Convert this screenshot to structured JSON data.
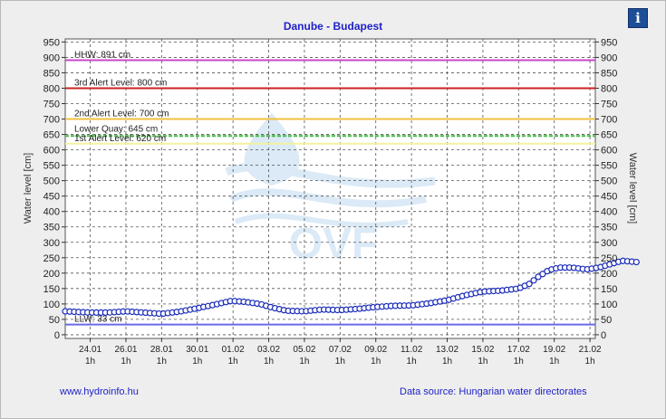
{
  "chart_data": {
    "type": "line",
    "title": "Danube - Budapest",
    "ylabel": "Water level [cm]",
    "ylabel_right": "Water level [cm]",
    "ylim": [
      0,
      950
    ],
    "yticks": [
      "0",
      "50",
      "100",
      "150",
      "200",
      "250",
      "300",
      "350",
      "400",
      "450",
      "500",
      "550",
      "600",
      "650",
      "700",
      "750",
      "800",
      "850",
      "900",
      "950"
    ],
    "xticks": [
      {
        "date": "24.01",
        "hour": "1h"
      },
      {
        "date": "26.01",
        "hour": "1h"
      },
      {
        "date": "28.01",
        "hour": "1h"
      },
      {
        "date": "30.01",
        "hour": "1h"
      },
      {
        "date": "01.02",
        "hour": "1h"
      },
      {
        "date": "03.02",
        "hour": "1h"
      },
      {
        "date": "05.02",
        "hour": "1h"
      },
      {
        "date": "07.02",
        "hour": "1h"
      },
      {
        "date": "09.02",
        "hour": "1h"
      },
      {
        "date": "11.02",
        "hour": "1h"
      },
      {
        "date": "13.02",
        "hour": "1h"
      },
      {
        "date": "15.02",
        "hour": "1h"
      },
      {
        "date": "17.02",
        "hour": "1h"
      },
      {
        "date": "19.02",
        "hour": "1h"
      },
      {
        "date": "21.02",
        "hour": "1h"
      }
    ],
    "x_day_range": [
      -1.4,
      28.3
    ],
    "reference_lines": [
      {
        "label": "HHW: 891 cm",
        "value": 891,
        "color": "#cc44cc"
      },
      {
        "label": "3rd Alert Level: 800 cm",
        "value": 800,
        "color": "#cc2222"
      },
      {
        "label": "2nd Alert Level: 700 cm",
        "value": 700,
        "color": "#f0c040"
      },
      {
        "label": "Lower Quay: 645 cm",
        "value": 645,
        "color": "#44bb44",
        "dashed": true
      },
      {
        "label": "1st Alert Level: 620 cm",
        "value": 620,
        "color": "#f2f2a0"
      },
      {
        "label": "LLW: 33 cm",
        "value": 33,
        "color": "#6a6ae8"
      }
    ],
    "series": [
      {
        "color": "#1a2bb8",
        "points": [
          [
            -1.4,
            76
          ],
          [
            0.0,
            72
          ],
          [
            1.0,
            72
          ],
          [
            2.0,
            76
          ],
          [
            3.0,
            72
          ],
          [
            4.0,
            68
          ],
          [
            5.0,
            75
          ],
          [
            6.0,
            86
          ],
          [
            7.0,
            98
          ],
          [
            7.9,
            110
          ],
          [
            8.6,
            107
          ],
          [
            9.5,
            100
          ],
          [
            10.2,
            88
          ],
          [
            11.0,
            78
          ],
          [
            12.0,
            76
          ],
          [
            13.0,
            82
          ],
          [
            14.0,
            80
          ],
          [
            15.0,
            84
          ],
          [
            16.0,
            90
          ],
          [
            17.0,
            94
          ],
          [
            18.0,
            95
          ],
          [
            19.0,
            102
          ],
          [
            20.0,
            112
          ],
          [
            21.0,
            128
          ],
          [
            22.0,
            140
          ],
          [
            23.0,
            143
          ],
          [
            24.0,
            150
          ],
          [
            24.6,
            165
          ],
          [
            25.1,
            188
          ],
          [
            25.7,
            210
          ],
          [
            26.3,
            218
          ],
          [
            27.0,
            218
          ],
          [
            27.8,
            212
          ],
          [
            28.5,
            218
          ],
          [
            29.2,
            230
          ],
          [
            29.8,
            240
          ],
          [
            30.6,
            236
          ]
        ]
      }
    ]
  },
  "footer": {
    "link": "www.hydroinfo.hu",
    "source": "Data source: Hungarian water directorates"
  },
  "info_button": "i",
  "watermark": "OVF",
  "colors": {
    "frame": "#eeeeee",
    "plot": "#ffffff",
    "title": "#1f22c7"
  }
}
